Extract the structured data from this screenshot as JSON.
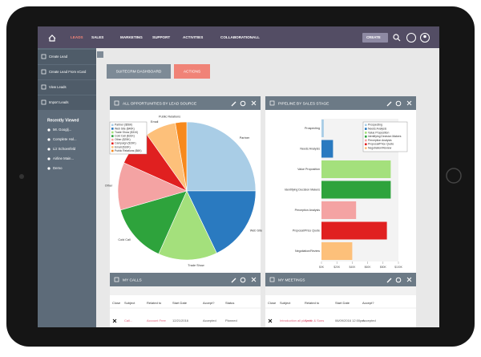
{
  "nav": {
    "items": [
      "LEADS",
      "SALES",
      "MARKETING",
      "SUPPORT",
      "ACTIVITIES",
      "COLLABORATION",
      "ALL"
    ],
    "create": "CREATE"
  },
  "sidebar": {
    "actions": [
      "Create Lead",
      "Create Lead From vCard",
      "View Leads",
      "Import Leads"
    ],
    "recent_title": "Recently Viewed",
    "recent": [
      "Mr. Googlj...",
      "Complete Hol...",
      "Liz Schoenfeld",
      "Airline Main...",
      "Demo"
    ]
  },
  "tabs": [
    "SUITECRM DASHBOARD",
    "ACTIONS"
  ],
  "chart_data": [
    {
      "type": "pie",
      "title": "ALL OPPORTUNITIES BY LEAD SOURCE",
      "categories": [
        "Partner",
        "Web Site",
        "Trade Show",
        "Cold Call",
        "Other",
        "Campaign",
        "Email",
        "Public Relations"
      ],
      "values": [
        56,
        40,
        31,
        31,
        25,
        19,
        16,
        6
      ],
      "colors": [
        "#a9cde6",
        "#2a7ac0",
        "#a4e07c",
        "#2ea33c",
        "#f4a3a3",
        "#e02020",
        "#fdc07a",
        "#f7891d"
      ],
      "legend": [
        "Partner ($56K)",
        "Web Site ($40K)",
        "Trade Show ($31K)",
        "Cold Call ($31K)",
        "Other ($25K)",
        "Campaign ($19K)",
        "Email ($16K)",
        "Public Relations ($6K)"
      ]
    },
    {
      "type": "bar",
      "orientation": "horizontal",
      "title": "PIPELINE BY SALES STAGE",
      "categories": [
        "Prospecting",
        "Needs Analysis",
        "Value Proposition",
        "Identifying Decision Makers",
        "Perception Analysis",
        "Proposal/Price Quote",
        "Negotiation/Review"
      ],
      "values": [
        3,
        15,
        90,
        90,
        45,
        85,
        40
      ],
      "colors": [
        "#a9cde6",
        "#2a7ac0",
        "#a4e07c",
        "#2ea33c",
        "#f4a3a3",
        "#e02020",
        "#fdc07a"
      ],
      "xlim": [
        0,
        100
      ],
      "xticks": [
        {
          "value": 0,
          "label": "$0K"
        },
        {
          "value": 20,
          "label": "$20K"
        },
        {
          "value": 40,
          "label": "$40K"
        },
        {
          "value": 60,
          "label": "$60K"
        },
        {
          "value": 80,
          "label": "$80K"
        },
        {
          "value": 100,
          "label": "$100K"
        }
      ]
    }
  ],
  "calls": {
    "title": "MY CALLS",
    "columns": [
      "Close",
      "Subject",
      "Related to",
      "Start Date",
      "Accept?",
      "Status"
    ],
    "rows": [
      [
        "Call...",
        "Account Free",
        "12/21/2016",
        "Accepted",
        "Planned"
      ]
    ]
  },
  "meetings": {
    "title": "MY MEETINGS",
    "columns": [
      "Close",
      "Subject",
      "Related to",
      "Start Date",
      "Accept?"
    ],
    "rows": [
      [
        "Introduction all players",
        "Smith & Sons",
        "06/09/2016 12:00pm",
        "Accepted"
      ]
    ]
  }
}
